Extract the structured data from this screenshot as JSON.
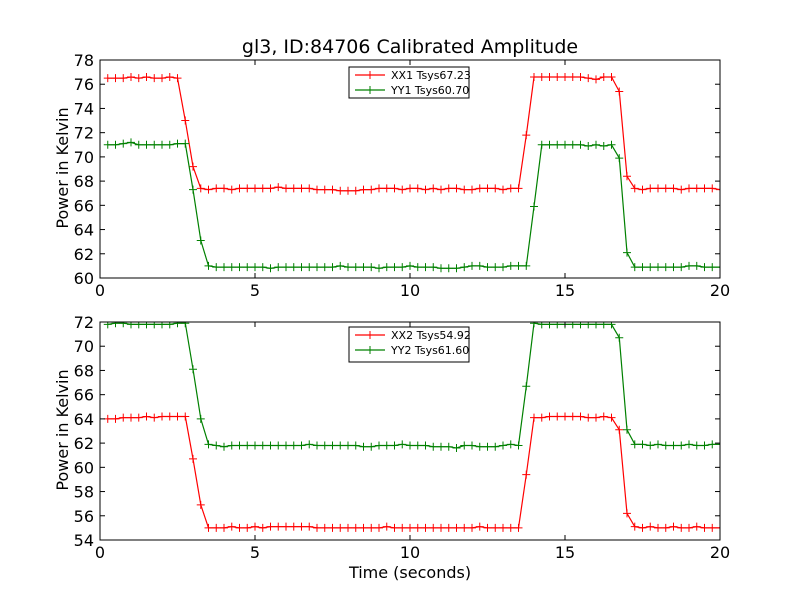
{
  "chart_data": [
    {
      "type": "line",
      "title": "gl3, ID:84706 Calibrated Amplitude",
      "xlabel": "",
      "ylabel": "Power in Kelvin",
      "xlim": [
        0,
        20
      ],
      "ylim": [
        60,
        78
      ],
      "xticks": [
        "0",
        "5",
        "10",
        "15",
        "20"
      ],
      "yticks": [
        "60",
        "62",
        "64",
        "66",
        "68",
        "70",
        "72",
        "74",
        "76",
        "78"
      ],
      "grid": false,
      "legend": "top-center",
      "x": [
        0.25,
        0.5,
        0.75,
        1.0,
        1.25,
        1.5,
        1.75,
        2.0,
        2.25,
        2.5,
        2.75,
        3.0,
        3.25,
        3.5,
        3.75,
        4.0,
        4.25,
        4.5,
        4.75,
        5.0,
        5.25,
        5.5,
        5.75,
        6.0,
        6.25,
        6.5,
        6.75,
        7.0,
        7.25,
        7.5,
        7.75,
        8.0,
        8.25,
        8.5,
        8.75,
        9.0,
        9.25,
        9.5,
        9.75,
        10.0,
        10.25,
        10.5,
        10.75,
        11.0,
        11.25,
        11.5,
        11.75,
        12.0,
        12.25,
        12.5,
        12.75,
        13.0,
        13.25,
        13.5,
        13.75,
        14.0,
        14.25,
        14.5,
        14.75,
        15.0,
        15.25,
        15.5,
        15.75,
        16.0,
        16.25,
        16.5,
        16.75,
        17.0,
        17.25,
        17.5,
        17.75,
        18.0,
        18.25,
        18.5,
        18.75,
        19.0,
        19.25,
        19.5,
        19.75,
        20.0
      ],
      "series": [
        {
          "name": "XX1 Tsys67.23",
          "color": "#ff0000",
          "values": [
            76.5,
            76.5,
            76.5,
            76.6,
            76.5,
            76.6,
            76.5,
            76.5,
            76.6,
            76.5,
            73.0,
            69.2,
            67.4,
            67.3,
            67.4,
            67.4,
            67.3,
            67.4,
            67.4,
            67.4,
            67.4,
            67.4,
            67.5,
            67.4,
            67.4,
            67.4,
            67.4,
            67.3,
            67.3,
            67.3,
            67.2,
            67.2,
            67.2,
            67.3,
            67.3,
            67.4,
            67.4,
            67.4,
            67.3,
            67.4,
            67.4,
            67.3,
            67.4,
            67.3,
            67.4,
            67.4,
            67.3,
            67.3,
            67.4,
            67.4,
            67.4,
            67.3,
            67.4,
            67.4,
            71.8,
            76.6,
            76.6,
            76.6,
            76.6,
            76.6,
            76.6,
            76.6,
            76.5,
            76.4,
            76.6,
            76.6,
            75.4,
            68.4,
            67.4,
            67.3,
            67.4,
            67.4,
            67.4,
            67.4,
            67.3,
            67.4,
            67.4,
            67.4,
            67.4,
            67.3
          ]
        },
        {
          "name": "YY1 Tsys60.70",
          "color": "#008000",
          "values": [
            71.0,
            71.0,
            71.1,
            71.2,
            71.0,
            71.0,
            71.0,
            71.0,
            71.0,
            71.1,
            71.1,
            67.3,
            63.1,
            61.0,
            60.9,
            60.9,
            60.9,
            60.9,
            60.9,
            60.9,
            60.9,
            60.8,
            60.9,
            60.9,
            60.9,
            60.9,
            60.9,
            60.9,
            60.9,
            60.9,
            61.0,
            60.9,
            60.9,
            60.9,
            60.9,
            60.8,
            60.9,
            60.9,
            60.9,
            61.0,
            60.9,
            60.9,
            60.9,
            60.8,
            60.8,
            60.8,
            60.9,
            61.0,
            61.0,
            60.9,
            60.9,
            60.9,
            61.0,
            61.0,
            61.0,
            65.9,
            71.0,
            71.0,
            71.0,
            71.0,
            71.0,
            71.0,
            70.9,
            71.0,
            70.9,
            71.0,
            69.9,
            62.1,
            60.9,
            60.9,
            60.9,
            60.9,
            60.9,
            60.9,
            60.9,
            61.0,
            61.0,
            60.9,
            60.9,
            60.9
          ]
        }
      ]
    },
    {
      "type": "line",
      "title": "",
      "xlabel": "Time (seconds)",
      "ylabel": "Power in Kelvin",
      "xlim": [
        0,
        20
      ],
      "ylim": [
        54,
        72
      ],
      "xticks": [
        "0",
        "5",
        "10",
        "15",
        "20"
      ],
      "yticks": [
        "54",
        "56",
        "58",
        "60",
        "62",
        "64",
        "66",
        "68",
        "70",
        "72"
      ],
      "grid": false,
      "legend": "top-center",
      "x": [
        0.25,
        0.5,
        0.75,
        1.0,
        1.25,
        1.5,
        1.75,
        2.0,
        2.25,
        2.5,
        2.75,
        3.0,
        3.25,
        3.5,
        3.75,
        4.0,
        4.25,
        4.5,
        4.75,
        5.0,
        5.25,
        5.5,
        5.75,
        6.0,
        6.25,
        6.5,
        6.75,
        7.0,
        7.25,
        7.5,
        7.75,
        8.0,
        8.25,
        8.5,
        8.75,
        9.0,
        9.25,
        9.5,
        9.75,
        10.0,
        10.25,
        10.5,
        10.75,
        11.0,
        11.25,
        11.5,
        11.75,
        12.0,
        12.25,
        12.5,
        12.75,
        13.0,
        13.25,
        13.5,
        13.75,
        14.0,
        14.25,
        14.5,
        14.75,
        15.0,
        15.25,
        15.5,
        15.75,
        16.0,
        16.25,
        16.5,
        16.75,
        17.0,
        17.25,
        17.5,
        17.75,
        18.0,
        18.25,
        18.5,
        18.75,
        19.0,
        19.25,
        19.5,
        19.75,
        20.0
      ],
      "series": [
        {
          "name": "XX2 Tsys54.92",
          "color": "#ff0000",
          "values": [
            64.0,
            64.0,
            64.1,
            64.1,
            64.1,
            64.2,
            64.1,
            64.2,
            64.2,
            64.2,
            64.2,
            60.7,
            56.9,
            55.0,
            55.0,
            55.0,
            55.1,
            55.0,
            55.0,
            55.1,
            55.0,
            55.1,
            55.1,
            55.1,
            55.1,
            55.1,
            55.1,
            55.0,
            55.0,
            55.0,
            55.0,
            55.0,
            55.0,
            55.0,
            55.0,
            55.0,
            55.1,
            55.0,
            55.0,
            55.0,
            55.0,
            55.0,
            55.0,
            55.0,
            55.0,
            55.0,
            55.0,
            55.0,
            55.1,
            55.0,
            55.0,
            55.0,
            55.0,
            55.0,
            59.4,
            64.1,
            64.1,
            64.2,
            64.2,
            64.2,
            64.2,
            64.2,
            64.1,
            64.1,
            64.2,
            64.1,
            63.1,
            56.2,
            55.1,
            55.0,
            55.1,
            55.0,
            55.0,
            55.1,
            55.0,
            55.0,
            55.1,
            55.0,
            55.0,
            55.0
          ]
        },
        {
          "name": "YY2 Tsys61.60",
          "color": "#008000",
          "values": [
            71.8,
            71.9,
            71.9,
            71.8,
            71.8,
            71.8,
            71.8,
            71.8,
            71.8,
            71.9,
            71.9,
            68.1,
            64.0,
            61.9,
            61.8,
            61.7,
            61.8,
            61.8,
            61.8,
            61.8,
            61.8,
            61.8,
            61.8,
            61.8,
            61.8,
            61.8,
            61.9,
            61.8,
            61.8,
            61.8,
            61.8,
            61.8,
            61.8,
            61.7,
            61.7,
            61.8,
            61.8,
            61.8,
            61.9,
            61.8,
            61.8,
            61.8,
            61.7,
            61.7,
            61.7,
            61.6,
            61.8,
            61.8,
            61.7,
            61.7,
            61.7,
            61.8,
            61.9,
            61.8,
            66.7,
            71.9,
            71.8,
            71.8,
            71.8,
            71.8,
            71.8,
            71.8,
            71.8,
            71.8,
            71.8,
            71.8,
            70.7,
            63.1,
            61.9,
            61.9,
            61.8,
            61.9,
            61.8,
            61.8,
            61.8,
            61.9,
            61.8,
            61.8,
            61.9,
            61.9
          ]
        }
      ]
    }
  ]
}
